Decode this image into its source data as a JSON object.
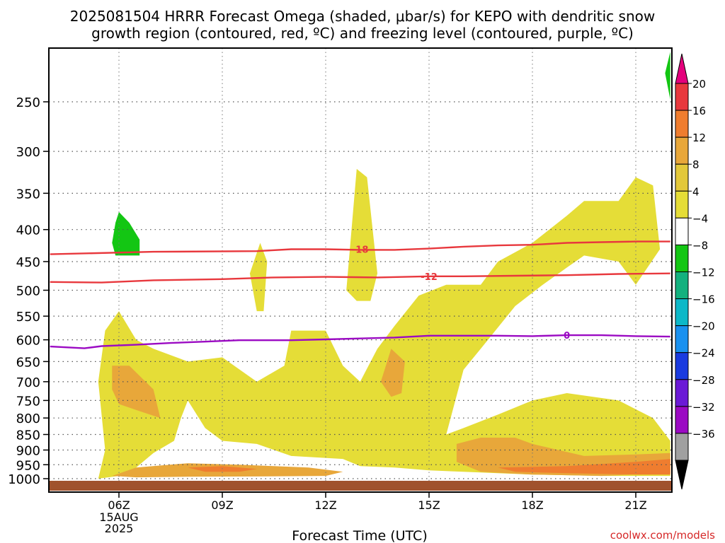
{
  "chart_data": {
    "type": "heatmap",
    "title_line1": "2025081504 HRRR Forecast Omega (shaded, μbar/s) for KEPO with dendritic snow",
    "title_line2": "growth region (contoured, red, ºC) and freezing level (contoured, purple, ºC)",
    "xlabel": "Forecast Time (UTC)",
    "ylabel": "",
    "x_ticks": [
      "06Z",
      "09Z",
      "12Z",
      "15Z",
      "18Z",
      "21Z"
    ],
    "x_tick_hours": [
      6,
      9,
      12,
      15,
      18,
      21
    ],
    "x_date_lines": [
      "15AUG",
      "2025"
    ],
    "xlim": [
      4.0,
      22.0
    ],
    "y_ticks": [
      250,
      300,
      350,
      400,
      450,
      500,
      550,
      600,
      650,
      700,
      750,
      800,
      850,
      900,
      950,
      1000
    ],
    "ylim_hpa": [
      1030,
      205
    ],
    "y_scale": "log-pressure (decreasing upward)",
    "grid": true,
    "colorbar": {
      "placement": "right",
      "labels": [
        "20",
        "16",
        "12",
        "8",
        "4",
        "−4",
        "−8",
        "−12",
        "−16",
        "−20",
        "−24",
        "−28",
        "−32",
        "−36"
      ],
      "colors": [
        "#e4007c",
        "#e8383d",
        "#ef7d2f",
        "#e8a73a",
        "#e3c83a",
        "#e5dd37",
        "#ffffff",
        "#13c613",
        "#13b17e",
        "#0db8c8",
        "#1a91ef",
        "#1a3be0",
        "#6b1ad6",
        "#9b0ac3",
        "#a0a0a0",
        "#000000"
      ]
    },
    "contours": [
      {
        "name": "-18",
        "color": "#e8383d",
        "label_at": [
          13.0,
          430
        ],
        "points": [
          [
            4.0,
            438
          ],
          [
            7.0,
            434
          ],
          [
            10.0,
            433
          ],
          [
            11.0,
            430
          ],
          [
            12.0,
            430
          ],
          [
            13.0,
            431
          ],
          [
            14.0,
            431
          ],
          [
            15.0,
            429
          ],
          [
            16.0,
            426
          ],
          [
            17.0,
            424
          ],
          [
            18.0,
            423
          ],
          [
            19.0,
            420
          ],
          [
            20.0,
            419
          ],
          [
            21.0,
            418
          ],
          [
            22.0,
            418
          ]
        ]
      },
      {
        "name": "-12",
        "color": "#e8383d",
        "label_at": [
          15.0,
          475
        ],
        "points": [
          [
            4.0,
            485
          ],
          [
            5.5,
            486
          ],
          [
            7.0,
            482
          ],
          [
            9.0,
            480
          ],
          [
            10.5,
            477
          ],
          [
            12.0,
            476
          ],
          [
            13.5,
            477
          ],
          [
            15.0,
            475
          ],
          [
            16.0,
            475
          ],
          [
            17.5,
            474
          ],
          [
            19.0,
            473
          ],
          [
            20.5,
            471
          ],
          [
            22.0,
            470
          ]
        ]
      },
      {
        "name": "0",
        "color": "#9b0ac3",
        "label_at": [
          19.0,
          590
        ],
        "points": [
          [
            4.0,
            615
          ],
          [
            5.0,
            619
          ],
          [
            5.5,
            614
          ],
          [
            6.5,
            611
          ],
          [
            7.5,
            607
          ],
          [
            8.5,
            604
          ],
          [
            9.5,
            601
          ],
          [
            11.0,
            601
          ],
          [
            12.0,
            599
          ],
          [
            13.0,
            597
          ],
          [
            14.0,
            595
          ],
          [
            15.0,
            591
          ],
          [
            16.0,
            591
          ],
          [
            17.0,
            591
          ],
          [
            18.0,
            592
          ],
          [
            19.0,
            590
          ],
          [
            20.0,
            590
          ],
          [
            21.0,
            592
          ],
          [
            22.0,
            593
          ]
        ]
      }
    ],
    "omega_regions": [
      {
        "level": "4-8",
        "color": "#e5dd37",
        "points": [
          [
            5.4,
            1000
          ],
          [
            5.6,
            900
          ],
          [
            5.4,
            700
          ],
          [
            5.6,
            580
          ],
          [
            6.0,
            540
          ],
          [
            6.5,
            600
          ],
          [
            7.0,
            620
          ],
          [
            8.0,
            650
          ],
          [
            9.0,
            640
          ],
          [
            10.0,
            700
          ],
          [
            10.8,
            660
          ],
          [
            11.0,
            580
          ],
          [
            12.0,
            580
          ],
          [
            12.5,
            660
          ],
          [
            13.0,
            700
          ],
          [
            13.5,
            620
          ],
          [
            14.0,
            570
          ],
          [
            14.7,
            510
          ],
          [
            15.5,
            490
          ],
          [
            16.5,
            490
          ],
          [
            17.0,
            450
          ],
          [
            18.0,
            420
          ],
          [
            19.0,
            380
          ],
          [
            19.5,
            360
          ],
          [
            20.5,
            360
          ],
          [
            21.0,
            330
          ],
          [
            21.5,
            340
          ],
          [
            21.7,
            430
          ],
          [
            21.0,
            490
          ],
          [
            20.5,
            450
          ],
          [
            19.5,
            440
          ],
          [
            19.0,
            460
          ],
          [
            18.3,
            490
          ],
          [
            17.5,
            530
          ],
          [
            16.5,
            620
          ],
          [
            16.0,
            670
          ],
          [
            15.5,
            850
          ],
          [
            16.0,
            830
          ],
          [
            17.0,
            790
          ],
          [
            18.0,
            750
          ],
          [
            19.0,
            730
          ],
          [
            20.5,
            750
          ],
          [
            21.5,
            800
          ],
          [
            22.0,
            870
          ],
          [
            22.0,
            990
          ],
          [
            20.0,
            990
          ],
          [
            18.0,
            985
          ],
          [
            16.0,
            975
          ],
          [
            15.0,
            970
          ],
          [
            14.0,
            960
          ],
          [
            13.0,
            955
          ],
          [
            12.5,
            930
          ],
          [
            11.0,
            920
          ],
          [
            10.0,
            880
          ],
          [
            9.0,
            870
          ],
          [
            8.5,
            830
          ],
          [
            8.0,
            750
          ],
          [
            7.8,
            800
          ],
          [
            7.6,
            870
          ],
          [
            7.0,
            910
          ],
          [
            6.5,
            960
          ],
          [
            6.0,
            990
          ]
        ]
      },
      {
        "level": "4-8",
        "color": "#e5dd37",
        "points": [
          [
            12.6,
            500
          ],
          [
            12.9,
            320
          ],
          [
            13.2,
            330
          ],
          [
            13.5,
            470
          ],
          [
            13.3,
            520
          ],
          [
            12.9,
            520
          ]
        ]
      },
      {
        "level": "4-8",
        "color": "#e5dd37",
        "points": [
          [
            9.8,
            470
          ],
          [
            10.1,
            420
          ],
          [
            10.3,
            450
          ],
          [
            10.2,
            540
          ],
          [
            10.0,
            540
          ]
        ]
      },
      {
        "level": "8-12",
        "color": "#e8a73a",
        "points": [
          [
            5.8,
            660
          ],
          [
            6.3,
            660
          ],
          [
            7.0,
            720
          ],
          [
            7.2,
            800
          ],
          [
            6.6,
            780
          ],
          [
            6.0,
            760
          ],
          [
            5.8,
            720
          ]
        ]
      },
      {
        "level": "8-12",
        "color": "#e8a73a",
        "points": [
          [
            13.6,
            700
          ],
          [
            13.9,
            620
          ],
          [
            14.3,
            650
          ],
          [
            14.2,
            730
          ],
          [
            13.9,
            740
          ]
        ]
      },
      {
        "level": "8-12",
        "color": "#e8a73a",
        "points": [
          [
            15.8,
            880
          ],
          [
            16.5,
            860
          ],
          [
            17.5,
            860
          ],
          [
            18.0,
            880
          ],
          [
            19.5,
            920
          ],
          [
            21.0,
            915
          ],
          [
            22.0,
            910
          ],
          [
            22.0,
            980
          ],
          [
            20.0,
            990
          ],
          [
            18.0,
            985
          ],
          [
            16.5,
            975
          ],
          [
            15.8,
            940
          ]
        ]
      },
      {
        "level": "8-12",
        "color": "#e8a73a",
        "points": [
          [
            5.8,
            990
          ],
          [
            6.5,
            960
          ],
          [
            8.0,
            945
          ],
          [
            9.5,
            950
          ],
          [
            10.5,
            955
          ],
          [
            11.5,
            960
          ],
          [
            12.5,
            975
          ],
          [
            12.0,
            990
          ],
          [
            10.0,
            992
          ],
          [
            8.0,
            993
          ],
          [
            6.5,
            995
          ]
        ]
      },
      {
        "level": "12-16",
        "color": "#ef7d2f",
        "points": [
          [
            8.0,
            960
          ],
          [
            9.0,
            955
          ],
          [
            10.0,
            965
          ],
          [
            9.5,
            975
          ],
          [
            8.5,
            975
          ]
        ]
      },
      {
        "level": "12-16",
        "color": "#ef7d2f",
        "points": [
          [
            17.0,
            960
          ],
          [
            19.0,
            955
          ],
          [
            21.0,
            940
          ],
          [
            22.0,
            930
          ],
          [
            22.0,
            985
          ],
          [
            21.0,
            985
          ],
          [
            19.0,
            980
          ],
          [
            17.5,
            975
          ]
        ]
      },
      {
        "level": "-8--4",
        "color": "#13c613",
        "points": [
          [
            5.8,
            420
          ],
          [
            5.9,
            390
          ],
          [
            6.0,
            375
          ],
          [
            6.3,
            390
          ],
          [
            6.6,
            415
          ],
          [
            6.6,
            440
          ],
          [
            5.9,
            440
          ]
        ]
      },
      {
        "level": "-8--4",
        "color": "#13c613",
        "points": [
          [
            21.85,
            225
          ],
          [
            22.0,
            208
          ],
          [
            22.0,
            248
          ]
        ]
      }
    ],
    "terrain_color": "#a0522d"
  },
  "footer": {
    "credit": "coolwx.com/models"
  }
}
